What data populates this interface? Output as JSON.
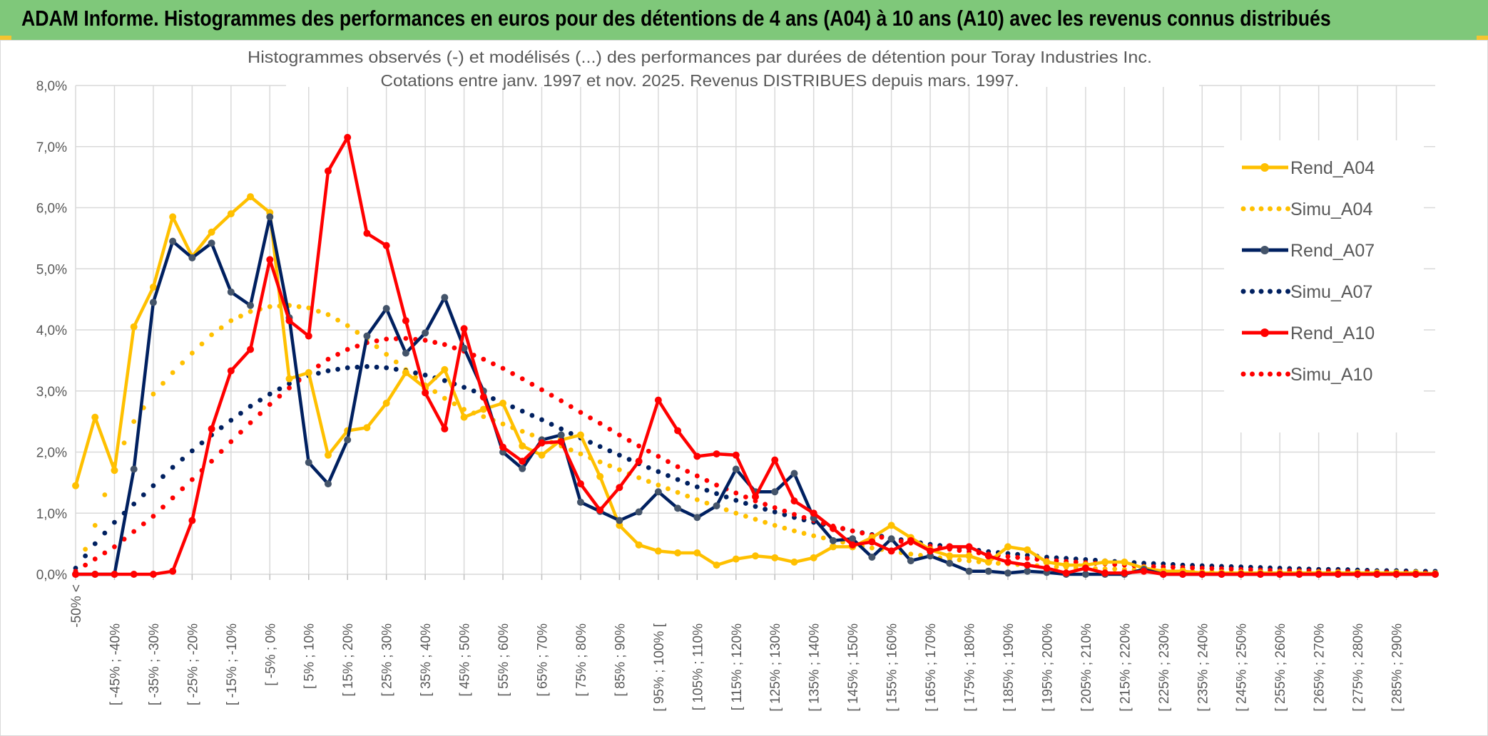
{
  "banner": {
    "title": "ADAM Informe. Histogrammes des performances en euros pour des détentions de 4 ans (A04) à 10 ans (A10) avec les revenus connus distribués"
  },
  "colors": {
    "banner_bg": "#7fc87a",
    "A04": "#FFC000",
    "A07": "#002060",
    "A10": "#FF0000",
    "grid": "#d9d9d9"
  },
  "chart_data": {
    "type": "line",
    "title": [
      "Histogrammes observés (-) et modélisés (...) des performances par durées de détention pour Toray Industries Inc.",
      "Cotations entre janv. 1997 et nov. 2025. Revenus DISTRIBUES depuis mars. 1997."
    ],
    "xlabel": "",
    "ylabel": "",
    "ylim": [
      0,
      8
    ],
    "y_ticks": [
      "0,0%",
      "1,0%",
      "2,0%",
      "3,0%",
      "4,0%",
      "5,0%",
      "6,0%",
      "7,0%",
      "8,0%"
    ],
    "x_tick_labels": [
      "-50% <",
      "[ -45% ; -40%",
      "[ -35% ; -30%",
      "[ -25% ; -20%",
      "[ -15% ; -10%",
      "[ -5% ; 0%",
      "[ 5% ; 10%",
      "[ 15% ; 20%",
      "[ 25% ; 30%",
      "[ 35% ; 40%",
      "[ 45% ; 50%",
      "[ 55% ; 60%",
      "[ 65% ; 70%",
      "[ 75% ; 80%",
      "[ 85% ; 90%",
      "[ 95% ; 100% [",
      "[ 105% ; 110%",
      "[ 115% ; 120%",
      "[ 125% ; 130%",
      "[ 135% ; 140%",
      "[ 145% ; 150%",
      "[ 155% ; 160%",
      "[ 165% ; 170%",
      "[ 175% ; 180%",
      "[ 185% ; 190%",
      "[ 195% ; 200%",
      "[ 205% ; 210%",
      "[ 215% ; 220%",
      "[ 225% ; 230%",
      "[ 235% ; 240%",
      "[ 245% ; 250%",
      "[ 255% ; 260%",
      "[ 265% ; 270%",
      "[ 275% ; 280%",
      "[ 285% ; 290%"
    ],
    "x_categories_count": 71,
    "legend_position": "right",
    "grid": true,
    "series": [
      {
        "name": "Rend_A04",
        "style": "solid",
        "color": "#FFC000",
        "values": [
          1.45,
          2.57,
          1.7,
          4.05,
          4.7,
          5.85,
          5.2,
          5.6,
          5.9,
          6.18,
          5.92,
          3.2,
          3.3,
          1.95,
          2.35,
          2.4,
          2.8,
          3.3,
          3.05,
          3.35,
          2.57,
          2.7,
          2.8,
          2.1,
          1.95,
          2.2,
          2.28,
          1.6,
          0.8,
          0.48,
          0.38,
          0.35,
          0.35,
          0.15,
          0.25,
          0.3,
          0.27,
          0.2,
          0.27,
          0.45,
          0.45,
          0.6,
          0.8,
          0.6,
          0.4,
          0.3,
          0.3,
          0.2,
          0.45,
          0.4,
          0.2,
          0.15,
          0.15,
          0.2,
          0.2,
          0.1,
          0.05,
          0.05,
          0.02,
          0.02,
          0.02,
          0.02,
          0.02,
          0.02,
          0.02,
          0.02,
          0.02,
          0.02,
          0.02,
          0.02,
          0.01
        ]
      },
      {
        "name": "Simu_A04",
        "style": "dotted",
        "color": "#FFC000",
        "values": [
          0.02,
          0.8,
          1.8,
          2.5,
          2.95,
          3.3,
          3.62,
          3.92,
          4.15,
          4.3,
          4.38,
          4.4,
          4.36,
          4.25,
          4.07,
          3.85,
          3.6,
          3.35,
          3.1,
          2.88,
          2.7,
          2.58,
          2.46,
          2.34,
          2.22,
          2.1,
          1.97,
          1.84,
          1.71,
          1.58,
          1.46,
          1.34,
          1.22,
          1.11,
          1.0,
          0.9,
          0.8,
          0.71,
          0.63,
          0.56,
          0.49,
          0.43,
          0.38,
          0.33,
          0.29,
          0.25,
          0.22,
          0.19,
          0.17,
          0.15,
          0.13,
          0.11,
          0.1,
          0.09,
          0.08,
          0.07,
          0.06,
          0.05,
          0.05,
          0.04,
          0.04,
          0.03,
          0.03,
          0.03,
          0.02,
          0.02,
          0.02,
          0.02,
          0.02,
          0.01,
          0.01
        ]
      },
      {
        "name": "Rend_A07",
        "style": "solid",
        "color": "#002060",
        "values": [
          0.0,
          0.0,
          0.0,
          1.72,
          4.45,
          5.45,
          5.18,
          5.42,
          4.62,
          4.4,
          5.85,
          4.2,
          1.83,
          1.48,
          2.2,
          3.9,
          4.35,
          3.62,
          3.95,
          4.53,
          3.7,
          3.0,
          2.0,
          1.73,
          2.2,
          2.28,
          1.18,
          1.03,
          0.88,
          1.02,
          1.35,
          1.08,
          0.93,
          1.12,
          1.72,
          1.35,
          1.35,
          1.65,
          0.92,
          0.55,
          0.58,
          0.28,
          0.58,
          0.22,
          0.3,
          0.18,
          0.05,
          0.05,
          0.02,
          0.05,
          0.03,
          0.0,
          0.0,
          0.0,
          0.0,
          0.08,
          0.0,
          0.0,
          0.0,
          0.0,
          0.0,
          0.0,
          0.0,
          0.0,
          0.0,
          0.0,
          0.0,
          0.0,
          0.0,
          0.0,
          0.0
        ]
      },
      {
        "name": "Simu_A07",
        "style": "dotted",
        "color": "#002060",
        "values": [
          0.1,
          0.5,
          0.85,
          1.15,
          1.45,
          1.75,
          2.02,
          2.28,
          2.52,
          2.75,
          2.95,
          3.12,
          3.25,
          3.33,
          3.38,
          3.4,
          3.38,
          3.33,
          3.26,
          3.17,
          3.06,
          2.94,
          2.81,
          2.67,
          2.53,
          2.38,
          2.23,
          2.09,
          1.95,
          1.81,
          1.68,
          1.55,
          1.43,
          1.32,
          1.21,
          1.11,
          1.02,
          0.93,
          0.85,
          0.78,
          0.71,
          0.65,
          0.59,
          0.54,
          0.49,
          0.45,
          0.41,
          0.37,
          0.34,
          0.31,
          0.28,
          0.26,
          0.24,
          0.22,
          0.2,
          0.18,
          0.17,
          0.15,
          0.14,
          0.13,
          0.12,
          0.11,
          0.1,
          0.09,
          0.08,
          0.08,
          0.07,
          0.06,
          0.06,
          0.05,
          0.05
        ]
      },
      {
        "name": "Rend_A10",
        "style": "solid",
        "color": "#FF0000",
        "values": [
          0.0,
          0.0,
          0.0,
          0.0,
          0.0,
          0.05,
          0.88,
          2.38,
          3.33,
          3.68,
          5.15,
          4.15,
          3.9,
          6.6,
          7.15,
          5.58,
          5.38,
          4.15,
          2.97,
          2.38,
          4.02,
          2.9,
          2.08,
          1.85,
          2.15,
          2.17,
          1.48,
          1.05,
          1.42,
          1.85,
          2.85,
          2.35,
          1.93,
          1.97,
          1.95,
          1.27,
          1.87,
          1.2,
          1.0,
          0.75,
          0.48,
          0.53,
          0.38,
          0.55,
          0.38,
          0.45,
          0.45,
          0.3,
          0.2,
          0.15,
          0.1,
          0.02,
          0.1,
          0.02,
          0.02,
          0.05,
          0.0,
          0.0,
          0.0,
          0.0,
          0.0,
          0.0,
          0.0,
          0.0,
          0.0,
          0.0,
          0.0,
          0.0,
          0.0,
          0.0,
          0.0
        ]
      },
      {
        "name": "Simu_A10",
        "style": "dotted",
        "color": "#FF0000",
        "values": [
          0.05,
          0.25,
          0.45,
          0.7,
          0.95,
          1.25,
          1.55,
          1.85,
          2.17,
          2.48,
          2.78,
          3.05,
          3.3,
          3.52,
          3.68,
          3.79,
          3.85,
          3.86,
          3.83,
          3.76,
          3.65,
          3.52,
          3.37,
          3.2,
          3.02,
          2.84,
          2.65,
          2.47,
          2.28,
          2.1,
          1.93,
          1.76,
          1.61,
          1.46,
          1.33,
          1.2,
          1.09,
          0.98,
          0.88,
          0.79,
          0.71,
          0.64,
          0.57,
          0.51,
          0.46,
          0.41,
          0.37,
          0.33,
          0.29,
          0.26,
          0.23,
          0.21,
          0.19,
          0.17,
          0.15,
          0.13,
          0.12,
          0.11,
          0.1,
          0.09,
          0.08,
          0.07,
          0.06,
          0.06,
          0.05,
          0.05,
          0.04,
          0.04,
          0.03,
          0.03,
          0.02
        ]
      }
    ]
  }
}
